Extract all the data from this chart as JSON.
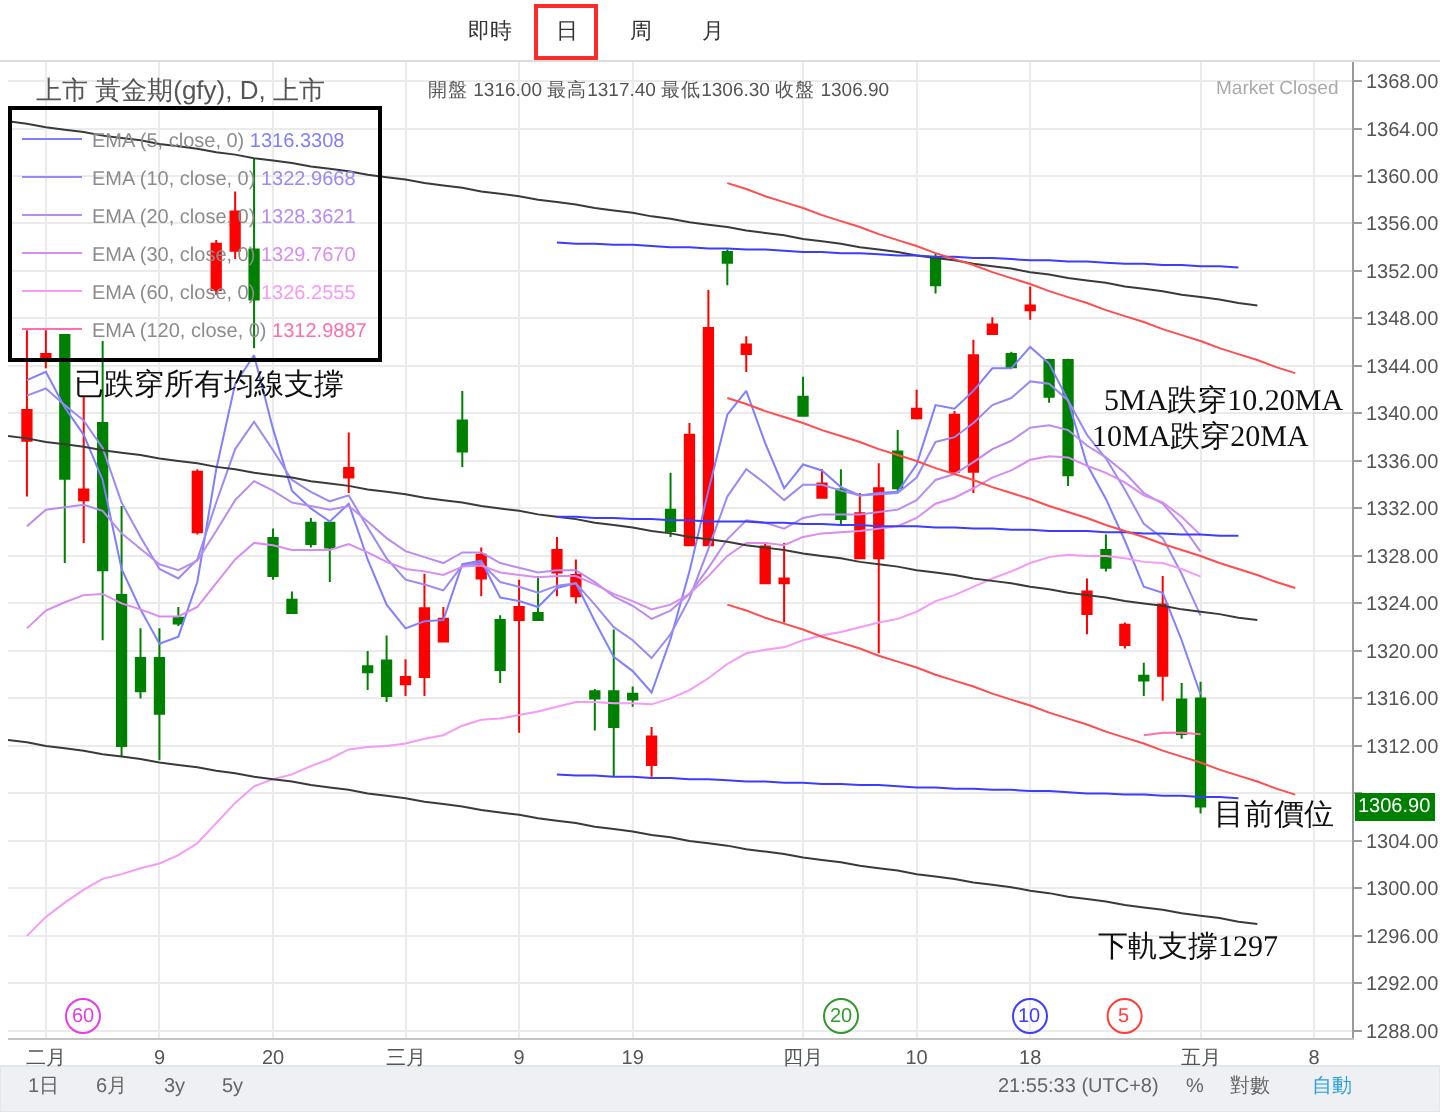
{
  "chart_data": {
    "type": "candlestick",
    "title": "上市 黃金期(gfy), D, 上市",
    "subtitle": "開盤 1316.00 最高1317.40 最低1306.30 收盤 1306.90",
    "categories": [
      null,
      null,
      "二月",
      null,
      null,
      null,
      null,
      null,
      "9",
      null,
      null,
      null,
      null,
      null,
      "20",
      null,
      null,
      null,
      null,
      null,
      null,
      "三月",
      null,
      null,
      null,
      null,
      null,
      "9",
      null,
      null,
      null,
      null,
      null,
      "19",
      null,
      null,
      null,
      null,
      null,
      null,
      null,
      null,
      "四月",
      null,
      null,
      null,
      null,
      null,
      "10",
      null,
      null,
      null,
      null,
      null,
      "18",
      null,
      null,
      null,
      null,
      null,
      null,
      null,
      null,
      "五月",
      null,
      null,
      null,
      null,
      null,
      "8",
      null,
      null
    ],
    "ohlc": [
      null,
      [
        1337.7,
        1347.0,
        1333.0,
        1340.3
      ],
      [
        1344.6,
        1347.0,
        1343.8,
        1345.0
      ],
      [
        1346.6,
        1346.6,
        1327.4,
        1334.5
      ],
      [
        1332.7,
        1341.4,
        1329.1,
        1333.6
      ],
      [
        1339.2,
        1346.1,
        1320.9,
        1326.8
      ],
      [
        1324.7,
        1332.2,
        1311.1,
        1312.0
      ],
      [
        1319.4,
        1321.9,
        1316.0,
        1316.6
      ],
      [
        1319.4,
        1321.9,
        1310.8,
        1314.7
      ],
      [
        1322.8,
        1323.7,
        1322.1,
        1322.3
      ],
      [
        1330.0,
        1335.3,
        1329.8,
        1335.1
      ],
      [
        1350.4,
        1354.6,
        1350.0,
        1354.3
      ],
      [
        1353.7,
        1358.7,
        1353.0,
        1357.0
      ],
      [
        1353.8,
        1361.5,
        1345.5,
        1349.6
      ],
      [
        1329.5,
        1330.3,
        1326.0,
        1326.3
      ],
      [
        1324.3,
        1325.0,
        1323.1,
        1323.2
      ],
      [
        1330.8,
        1331.2,
        1328.7,
        1329.0
      ],
      [
        1330.8,
        1331.0,
        1325.8,
        1328.7
      ],
      [
        1334.6,
        1338.4,
        1333.3,
        1335.4
      ],
      [
        1318.7,
        1320.0,
        1316.7,
        1318.2
      ],
      [
        1319.2,
        1321.3,
        1315.7,
        1316.2
      ],
      [
        1317.2,
        1319.3,
        1316.2,
        1317.8
      ],
      [
        1317.8,
        1326.5,
        1316.2,
        1323.6
      ],
      [
        1320.8,
        1323.7,
        1320.8,
        1322.7
      ],
      [
        1339.4,
        1341.9,
        1335.5,
        1336.8
      ],
      [
        1326.1,
        1328.7,
        1324.6,
        1328.1
      ],
      [
        1322.6,
        1323.0,
        1317.3,
        1318.4
      ],
      [
        1322.6,
        1326.0,
        1313.1,
        1323.7
      ],
      [
        1323.2,
        1326.3,
        1322.6,
        1322.6
      ],
      [
        1326.6,
        1329.6,
        1324.6,
        1328.5
      ],
      [
        1324.6,
        1327.7,
        1324.0,
        1326.4
      ],
      [
        1316.6,
        1316.8,
        1313.3,
        1316.0
      ],
      [
        1316.6,
        1321.8,
        1309.4,
        1313.6
      ],
      [
        1316.4,
        1317.0,
        1315.3,
        1315.9
      ],
      [
        1310.4,
        1313.6,
        1309.4,
        1312.8
      ],
      [
        1331.9,
        1335.0,
        1329.6,
        1330.1
      ],
      [
        1328.9,
        1339.2,
        1328.9,
        1338.2
      ],
      [
        1328.9,
        1350.4,
        1328.9,
        1347.2
      ],
      [
        1353.6,
        1353.8,
        1350.8,
        1352.7
      ],
      [
        1345.0,
        1346.5,
        1343.5,
        1345.8
      ],
      [
        1325.7,
        1329.1,
        1325.7,
        1328.8
      ],
      [
        1325.7,
        1329.1,
        1322.4,
        1326.1
      ],
      [
        1341.4,
        1343.1,
        1339.8,
        1339.8
      ],
      [
        1332.9,
        1335.3,
        1332.9,
        1334.1
      ],
      [
        1333.6,
        1335.3,
        1330.6,
        1331.1
      ],
      [
        1327.8,
        1333.3,
        1327.8,
        1331.6
      ],
      [
        1327.8,
        1335.8,
        1319.8,
        1333.7
      ],
      [
        1336.8,
        1338.6,
        1333.3,
        1333.7
      ],
      [
        1339.6,
        1342.0,
        1339.5,
        1340.4
      ],
      [
        1353.1,
        1353.5,
        1350.1,
        1350.8
      ],
      [
        1335.1,
        1340.2,
        1335.1,
        1339.9
      ],
      [
        1335.1,
        1346.2,
        1333.3,
        1344.9
      ],
      [
        1346.7,
        1348.1,
        1346.7,
        1347.5
      ],
      [
        1345.0,
        1345.2,
        1343.9,
        1343.9
      ],
      [
        1348.7,
        1350.7,
        1347.9,
        1349.1
      ],
      [
        1344.5,
        1344.6,
        1340.9,
        1341.4
      ],
      [
        1344.5,
        1344.6,
        1333.9,
        1334.8
      ],
      [
        1323.1,
        1326.1,
        1321.4,
        1325.0
      ],
      [
        1328.5,
        1329.8,
        1326.7,
        1327.0
      ],
      [
        1320.5,
        1322.4,
        1320.2,
        1322.2
      ],
      [
        1317.9,
        1319.0,
        1316.2,
        1317.5
      ],
      [
        1317.9,
        1326.3,
        1315.8,
        1323.9
      ],
      [
        1315.9,
        1317.3,
        1312.6,
        1313.0
      ],
      [
        1316.0,
        1317.4,
        1306.3,
        1306.9
      ],
      null,
      null,
      null,
      null,
      null,
      null,
      null,
      null
    ],
    "colors": [
      null,
      "#ff0000",
      "#ff0000",
      "#008000",
      "#ff0000",
      "#008000",
      "#008000",
      "#008000",
      "#008000",
      "#008000",
      "#ff0000",
      "#ff0000",
      "#ff0000",
      "#008000",
      "#008000",
      "#008000",
      "#008000",
      "#008000",
      "#ff0000",
      "#008000",
      "#008000",
      "#ff0000",
      "#ff0000",
      "#ff0000",
      "#008000",
      "#ff0000",
      "#008000",
      "#ff0000",
      "#008000",
      "#ff0000",
      "#ff0000",
      "#008000",
      "#008000",
      "#008000",
      "#ff0000",
      "#008000",
      "#ff0000",
      "#ff0000",
      "#008000",
      "#ff0000",
      "#ff0000",
      "#ff0000",
      "#008000",
      "#ff0000",
      "#008000",
      "#ff0000",
      "#ff0000",
      "#008000",
      "#ff0000",
      "#008000",
      "#ff0000",
      "#ff0000",
      "#ff0000",
      "#008000",
      "#ff0000",
      "#008000",
      "#008000",
      "#ff0000",
      "#008000",
      "#ff0000",
      "#008000",
      "#ff0000",
      "#008000",
      "#008000",
      null,
      null,
      null,
      null,
      null,
      null,
      null,
      null
    ],
    "ylim": [
      1287.4,
      1369.6
    ],
    "yticks": [
      {
        "value": 1288,
        "label": "1288.00"
      },
      {
        "value": 1292,
        "label": "1292.00"
      },
      {
        "value": 1296,
        "label": "1296.00"
      },
      {
        "value": 1300,
        "label": "1300.00"
      },
      {
        "value": 1304,
        "label": "1304.00"
      },
      {
        "value": 1308,
        "label": null
      },
      {
        "value": 1312,
        "label": "1312.00"
      },
      {
        "value": 1316,
        "label": "1316.00"
      },
      {
        "value": 1320,
        "label": "1320.00"
      },
      {
        "value": 1324,
        "label": "1324.00"
      },
      {
        "value": 1328,
        "label": "1328.00"
      },
      {
        "value": 1332,
        "label": "1332.00"
      },
      {
        "value": 1336,
        "label": "1336.00"
      },
      {
        "value": 1340,
        "label": "1340.00"
      },
      {
        "value": 1344,
        "label": "1344.00"
      },
      {
        "value": 1348,
        "label": "1348.00"
      },
      {
        "value": 1352,
        "label": "1352.00"
      },
      {
        "value": 1356,
        "label": "1356.00"
      },
      {
        "value": 1360,
        "label": "1360.00"
      },
      {
        "value": 1364,
        "label": "1364.00"
      },
      {
        "value": 1368,
        "label": "1368.00"
      }
    ],
    "grid": true,
    "legend": "top left",
    "series": [
      {
        "name": "EMA (5, close, 0) 1316.3308",
        "type": "line",
        "color": "#7f7fff",
        "values": [
          null,
          1342.8,
          1343.5,
          1340.5,
          1338.2,
          1334.4,
          1326.9,
          1323.5,
          1320.6,
          1321.2,
          1325.8,
          1335.3,
          1342.5,
          1344.9,
          1338.7,
          1333.5,
          1332.0,
          1330.9,
          1332.4,
          1327.7,
          1323.9,
          1321.9,
          1322.5,
          1322.6,
          1327.3,
          1327.6,
          1324.5,
          1324.2,
          1323.7,
          1325.3,
          1325.7,
          1322.5,
          1319.5,
          1318.3,
          1316.5,
          1321.0,
          1326.7,
          1333.5,
          1339.9,
          1341.9,
          1337.5,
          1333.7,
          1335.7,
          1335.2,
          1333.8,
          1333.1,
          1333.3,
          1333.4,
          1335.7,
          1340.7,
          1340.4,
          1341.9,
          1343.8,
          1343.8,
          1345.6,
          1344.2,
          1341.1,
          1335.7,
          1332.8,
          1329.3,
          1325.4,
          1324.9,
          1320.9,
          1316.3308,
          null,
          null,
          null,
          null,
          null,
          null,
          null,
          null
        ]
      },
      {
        "name": "EMA (10, close, 0) 1322.9668",
        "type": "line",
        "color": "#9a8af5",
        "values": [
          null,
          1341.5,
          1342.1,
          1340.7,
          1339.4,
          1337.1,
          1332.5,
          1329.6,
          1326.9,
          1326.1,
          1327.7,
          1332.5,
          1337.0,
          1339.3,
          1336.9,
          1334.4,
          1333.4,
          1332.6,
          1333.1,
          1330.4,
          1327.8,
          1326.0,
          1325.6,
          1325.1,
          1327.2,
          1327.4,
          1325.8,
          1325.4,
          1324.9,
          1325.5,
          1325.7,
          1323.9,
          1322.0,
          1320.9,
          1319.4,
          1321.4,
          1324.4,
          1328.6,
          1333.0,
          1335.3,
          1334.1,
          1332.7,
          1334.0,
          1334.0,
          1333.5,
          1333.1,
          1333.2,
          1333.3,
          1334.6,
          1337.6,
          1338.0,
          1339.2,
          1340.7,
          1341.3,
          1342.7,
          1342.5,
          1341.1,
          1338.2,
          1336.2,
          1333.6,
          1330.7,
          1329.5,
          1326.5,
          1322.9668,
          null,
          null,
          null,
          null,
          null,
          null,
          null,
          null
        ]
      },
      {
        "name": "EMA (20, close, 0) 1328.3621",
        "type": "line",
        "color": "#b98cf0",
        "values": [
          null,
          1330.5,
          1331.9,
          1332.1,
          1332.3,
          1331.8,
          1329.9,
          1328.6,
          1327.3,
          1326.8,
          1327.6,
          1330.1,
          1332.7,
          1334.3,
          1333.5,
          1332.5,
          1332.2,
          1331.9,
          1332.2,
          1330.9,
          1329.5,
          1328.4,
          1327.9,
          1327.4,
          1328.3,
          1328.3,
          1327.4,
          1327.0,
          1326.6,
          1326.8,
          1326.8,
          1325.8,
          1324.6,
          1323.8,
          1322.7,
          1323.4,
          1324.8,
          1327.0,
          1329.4,
          1331.0,
          1330.8,
          1330.3,
          1331.2,
          1331.5,
          1331.5,
          1331.5,
          1331.7,
          1331.9,
          1332.7,
          1334.4,
          1334.9,
          1335.9,
          1337.0,
          1337.7,
          1338.8,
          1339.0,
          1338.6,
          1337.3,
          1336.3,
          1335.0,
          1333.3,
          1332.4,
          1330.6,
          1328.3621,
          null,
          null,
          null,
          null,
          null,
          null,
          null,
          null
        ]
      },
      {
        "name": "EMA (30, close, 0) 1329.7670",
        "type": "line",
        "color": "#d98cf0",
        "values": [
          null,
          1321.9,
          1323.4,
          1324.1,
          1324.7,
          1324.8,
          1324.0,
          1323.5,
          1322.9,
          1322.9,
          1323.7,
          1325.7,
          1327.7,
          1329.1,
          1328.9,
          1328.5,
          1328.5,
          1328.5,
          1329.0,
          1328.3,
          1327.5,
          1326.9,
          1326.7,
          1326.4,
          1327.1,
          1327.2,
          1326.6,
          1326.4,
          1326.2,
          1326.3,
          1326.3,
          1325.6,
          1324.8,
          1324.2,
          1323.5,
          1323.9,
          1324.8,
          1326.3,
          1328.0,
          1329.1,
          1329.1,
          1328.9,
          1329.6,
          1329.9,
          1330.0,
          1330.1,
          1330.3,
          1330.5,
          1331.2,
          1332.4,
          1332.9,
          1333.7,
          1334.6,
          1335.2,
          1336.1,
          1336.4,
          1336.3,
          1335.6,
          1335.0,
          1334.2,
          1333.1,
          1332.5,
          1331.3,
          1329.767,
          null,
          null,
          null,
          null,
          null,
          null,
          null,
          null
        ]
      },
      {
        "name": "EMA (60, close, 0) 1326.2555",
        "type": "line",
        "color": "#f59af5",
        "values": [
          null,
          1296.0,
          1297.6,
          1298.8,
          1299.9,
          1300.8,
          1301.2,
          1301.7,
          1302.1,
          1302.8,
          1303.8,
          1305.5,
          1307.2,
          1308.6,
          1309.2,
          1309.6,
          1310.3,
          1310.9,
          1311.7,
          1311.9,
          1312.0,
          1312.2,
          1312.6,
          1312.9,
          1313.7,
          1314.2,
          1314.3,
          1314.6,
          1314.9,
          1315.3,
          1315.7,
          1315.7,
          1315.6,
          1315.6,
          1315.5,
          1316.0,
          1316.7,
          1317.7,
          1318.9,
          1319.8,
          1320.1,
          1320.3,
          1320.9,
          1321.3,
          1321.6,
          1322.0,
          1322.4,
          1322.7,
          1323.3,
          1324.2,
          1324.7,
          1325.4,
          1326.1,
          1326.7,
          1327.4,
          1327.9,
          1328.1,
          1328.0,
          1328.0,
          1327.8,
          1327.5,
          1327.4,
          1326.9,
          1326.2555,
          null,
          null,
          null,
          null,
          null,
          null,
          null,
          null
        ]
      },
      {
        "name": "EMA (120, close, 0) 1312.9887",
        "type": "line",
        "color": "#ff6fae",
        "values": [
          null,
          null,
          null,
          null,
          null,
          null,
          null,
          null,
          null,
          null,
          null,
          null,
          null,
          null,
          null,
          null,
          null,
          null,
          null,
          null,
          null,
          null,
          null,
          null,
          null,
          null,
          null,
          null,
          null,
          null,
          null,
          null,
          null,
          null,
          null,
          null,
          null,
          null,
          null,
          null,
          null,
          null,
          null,
          null,
          null,
          null,
          null,
          null,
          null,
          null,
          null,
          null,
          null,
          null,
          null,
          null,
          null,
          null,
          null,
          null,
          1312.9,
          1313.1,
          1313.1,
          1312.9887,
          null,
          null,
          null,
          null,
          null,
          null,
          null,
          null
        ]
      },
      {
        "type": "line",
        "color": "#3a3a3a",
        "values": [
          1364.6,
          1364.4,
          1364.1,
          1363.9,
          1363.7,
          1363.4,
          1363.2,
          1363.0,
          1362.7,
          1362.5,
          1362.3,
          1362.0,
          1361.8,
          1361.5,
          1361.3,
          1361.1,
          1360.8,
          1360.6,
          1360.4,
          1360.1,
          1359.9,
          1359.7,
          1359.4,
          1359.2,
          1359.0,
          1358.7,
          1358.5,
          1358.3,
          1358.0,
          1357.8,
          1357.6,
          1357.3,
          1357.1,
          1356.9,
          1356.6,
          1356.4,
          1356.1,
          1355.9,
          1355.7,
          1355.4,
          1355.2,
          1355.0,
          1354.7,
          1354.5,
          1354.3,
          1354.0,
          1353.8,
          1353.6,
          1353.3,
          1353.1,
          1352.9,
          1352.6,
          1352.4,
          1352.2,
          1351.9,
          1351.7,
          1351.4,
          1351.2,
          1351.0,
          1350.7,
          1350.5,
          1350.3,
          1350.0,
          1349.8,
          1349.6,
          1349.3,
          1349.1,
          null,
          null,
          null,
          null,
          null
        ]
      },
      {
        "type": "line",
        "color": "#3a3a3a",
        "values": [
          1338.1,
          1337.9,
          1337.6,
          1337.4,
          1337.2,
          1336.9,
          1336.7,
          1336.5,
          1336.2,
          1336.0,
          1335.8,
          1335.5,
          1335.3,
          1335.0,
          1334.8,
          1334.6,
          1334.3,
          1334.1,
          1333.9,
          1333.6,
          1333.4,
          1333.2,
          1332.9,
          1332.7,
          1332.5,
          1332.2,
          1332.0,
          1331.8,
          1331.5,
          1331.3,
          1331.1,
          1330.8,
          1330.6,
          1330.4,
          1330.1,
          1329.9,
          1329.6,
          1329.4,
          1329.2,
          1328.9,
          1328.7,
          1328.5,
          1328.2,
          1328.0,
          1327.8,
          1327.5,
          1327.3,
          1327.1,
          1326.8,
          1326.6,
          1326.4,
          1326.1,
          1325.9,
          1325.7,
          1325.4,
          1325.2,
          1324.9,
          1324.7,
          1324.5,
          1324.2,
          1324.0,
          1323.8,
          1323.5,
          1323.3,
          1323.1,
          1322.8,
          1322.6,
          null,
          null,
          null,
          null,
          null
        ]
      },
      {
        "type": "line",
        "color": "#3a3a3a",
        "values": [
          1312.5,
          1312.3,
          1312.0,
          1311.8,
          1311.6,
          1311.3,
          1311.1,
          1310.9,
          1310.6,
          1310.4,
          1310.2,
          1309.9,
          1309.7,
          1309.4,
          1309.2,
          1309.0,
          1308.7,
          1308.5,
          1308.3,
          1308.0,
          1307.8,
          1307.6,
          1307.3,
          1307.1,
          1306.9,
          1306.6,
          1306.4,
          1306.2,
          1305.9,
          1305.7,
          1305.5,
          1305.2,
          1305.0,
          1304.8,
          1304.5,
          1304.3,
          1304.0,
          1303.8,
          1303.6,
          1303.3,
          1303.1,
          1302.9,
          1302.6,
          1302.4,
          1302.2,
          1301.9,
          1301.7,
          1301.5,
          1301.2,
          1301.0,
          1300.8,
          1300.5,
          1300.3,
          1300.1,
          1299.8,
          1299.6,
          1299.3,
          1299.1,
          1298.9,
          1298.6,
          1298.4,
          1298.2,
          1297.9,
          1297.7,
          1297.5,
          1297.2,
          1297.0,
          null,
          null,
          null,
          null,
          null
        ]
      },
      {
        "type": "line",
        "color": "#3c3cff",
        "values": [
          null,
          null,
          null,
          null,
          null,
          null,
          null,
          null,
          null,
          null,
          null,
          null,
          null,
          null,
          null,
          null,
          null,
          null,
          null,
          null,
          null,
          null,
          null,
          null,
          null,
          null,
          null,
          null,
          null,
          1354.4,
          1354.3,
          1354.3,
          1354.2,
          1354.2,
          1354.1,
          1354.0,
          1354.0,
          1353.9,
          1353.9,
          1353.8,
          1353.8,
          1353.7,
          1353.6,
          1353.6,
          1353.5,
          1353.5,
          1353.4,
          1353.3,
          1353.3,
          1353.2,
          1353.2,
          1353.1,
          1353.1,
          1353.0,
          1352.9,
          1352.9,
          1352.8,
          1352.8,
          1352.7,
          1352.6,
          1352.6,
          1352.5,
          1352.5,
          1352.4,
          1352.4,
          1352.3,
          null,
          null,
          null,
          null,
          null,
          null
        ]
      },
      {
        "type": "line",
        "color": "#3c3cff",
        "values": [
          null,
          null,
          null,
          null,
          null,
          null,
          null,
          null,
          null,
          null,
          null,
          null,
          null,
          null,
          null,
          null,
          null,
          null,
          null,
          null,
          null,
          null,
          null,
          null,
          null,
          null,
          null,
          null,
          null,
          1331.3,
          1331.3,
          1331.2,
          1331.2,
          1331.1,
          1331.1,
          1331.0,
          1331.0,
          1330.9,
          1330.9,
          1330.9,
          1330.8,
          1330.8,
          1330.7,
          1330.7,
          1330.6,
          1330.6,
          1330.5,
          1330.5,
          1330.5,
          1330.4,
          1330.4,
          1330.3,
          1330.3,
          1330.2,
          1330.2,
          1330.1,
          1330.1,
          1330.1,
          1330.0,
          1330.0,
          1329.9,
          1329.9,
          1329.8,
          1329.8,
          1329.7,
          1329.7,
          null,
          null,
          null,
          null,
          null,
          null
        ]
      },
      {
        "type": "line",
        "color": "#3c3cff",
        "values": [
          null,
          null,
          null,
          null,
          null,
          null,
          null,
          null,
          null,
          null,
          null,
          null,
          null,
          null,
          null,
          null,
          null,
          null,
          null,
          null,
          null,
          null,
          null,
          null,
          null,
          null,
          null,
          null,
          null,
          1309.6,
          1309.5,
          1309.5,
          1309.4,
          1309.4,
          1309.3,
          1309.3,
          1309.2,
          1309.2,
          1309.1,
          1309.0,
          1309.0,
          1308.9,
          1308.9,
          1308.8,
          1308.8,
          1308.7,
          1308.7,
          1308.6,
          1308.5,
          1308.5,
          1308.4,
          1308.4,
          1308.3,
          1308.3,
          1308.2,
          1308.2,
          1308.1,
          1308.0,
          1308.0,
          1307.9,
          1307.9,
          1307.8,
          1307.8,
          1307.7,
          1307.7,
          1307.6,
          null,
          null,
          null,
          null,
          null,
          null
        ]
      },
      {
        "type": "line",
        "color": "#ff4d4d",
        "values": [
          null,
          null,
          null,
          null,
          null,
          null,
          null,
          null,
          null,
          null,
          null,
          null,
          null,
          null,
          null,
          null,
          null,
          null,
          null,
          null,
          null,
          null,
          null,
          null,
          null,
          null,
          null,
          null,
          null,
          null,
          null,
          null,
          null,
          null,
          null,
          null,
          null,
          null,
          1359.4,
          1358.9,
          1358.3,
          1357.8,
          1357.3,
          1356.7,
          1356.2,
          1355.7,
          1355.1,
          1354.6,
          1354.1,
          1353.5,
          1353.0,
          1352.5,
          1351.9,
          1351.4,
          1350.9,
          1350.3,
          1349.8,
          1349.3,
          1348.7,
          1348.2,
          1347.7,
          1347.1,
          1346.6,
          1346.1,
          1345.5,
          1345.0,
          1344.5,
          1343.9,
          1343.4,
          null,
          null,
          null
        ]
      },
      {
        "type": "line",
        "color": "#ff4d4d",
        "values": [
          null,
          null,
          null,
          null,
          null,
          null,
          null,
          null,
          null,
          null,
          null,
          null,
          null,
          null,
          null,
          null,
          null,
          null,
          null,
          null,
          null,
          null,
          null,
          null,
          null,
          null,
          null,
          null,
          null,
          null,
          null,
          null,
          null,
          null,
          null,
          null,
          null,
          null,
          1341.3,
          1340.8,
          1340.2,
          1339.7,
          1339.2,
          1338.6,
          1338.1,
          1337.6,
          1337.0,
          1336.5,
          1336.0,
          1335.4,
          1334.9,
          1334.4,
          1333.8,
          1333.3,
          1332.8,
          1332.2,
          1331.7,
          1331.2,
          1330.6,
          1330.1,
          1329.6,
          1329.0,
          1328.5,
          1328.0,
          1327.4,
          1326.9,
          1326.4,
          1325.8,
          1325.3,
          null,
          null,
          null
        ]
      },
      {
        "type": "line",
        "color": "#ff4d4d",
        "values": [
          null,
          null,
          null,
          null,
          null,
          null,
          null,
          null,
          null,
          null,
          null,
          null,
          null,
          null,
          null,
          null,
          null,
          null,
          null,
          null,
          null,
          null,
          null,
          null,
          null,
          null,
          null,
          null,
          null,
          null,
          null,
          null,
          null,
          null,
          null,
          null,
          null,
          null,
          1323.9,
          1323.4,
          1322.8,
          1322.3,
          1321.8,
          1321.2,
          1320.7,
          1320.2,
          1319.6,
          1319.1,
          1318.6,
          1318.0,
          1317.5,
          1317.0,
          1316.4,
          1315.9,
          1315.4,
          1314.8,
          1314.3,
          1313.8,
          1313.2,
          1312.7,
          1312.2,
          1311.6,
          1311.1,
          1310.6,
          1310.0,
          1309.5,
          1309.0,
          1308.4,
          1307.9,
          null,
          null,
          null
        ]
      }
    ],
    "annotations": [
      "已跌穿所有均線支撐",
      "5MA跌穿10.20MA",
      "10MA跌穿20MA",
      "目前價位",
      "下軌支撐1297",
      "60",
      "20",
      "10",
      "5",
      {
        "text": "1306.90",
        "y": 1306.9
      },
      "Market Closed",
      "即時",
      "日",
      "周",
      "月",
      "1日",
      "6月",
      "3y",
      "5y",
      "21:55:33 (UTC+8)",
      "%",
      "對數",
      "自動"
    ]
  }
}
